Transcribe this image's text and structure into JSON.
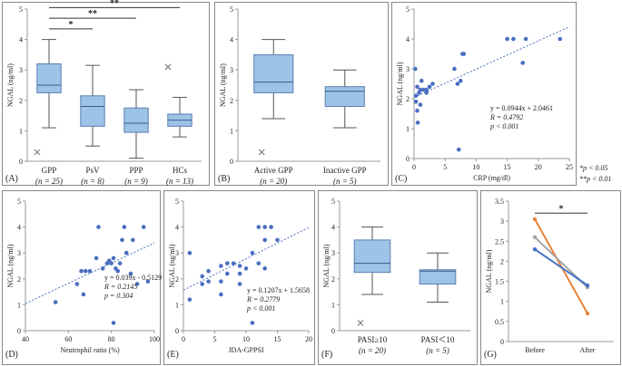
{
  "panels": [
    {
      "id": "A",
      "label": "(A)",
      "type": "box",
      "ylabel": "NGAL (ng/ml)",
      "ylim": [
        0,
        5
      ],
      "yticks": [
        "0",
        "1",
        "2",
        "3",
        "4",
        "5"
      ],
      "categories": [
        {
          "name": "GPP",
          "n": "(n = 25)",
          "min": 1.1,
          "q1": 2.25,
          "median": 2.5,
          "q3": 3.2,
          "max": 4.0,
          "outliers": [
            0.3
          ]
        },
        {
          "name": "PsV",
          "n": "(n = 8)",
          "min": 0.5,
          "q1": 1.15,
          "median": 1.8,
          "q3": 2.15,
          "max": 3.15,
          "outliers": []
        },
        {
          "name": "PPP",
          "n": "(n = 9)",
          "min": 0.1,
          "q1": 0.95,
          "median": 1.25,
          "q3": 1.75,
          "max": 2.35,
          "outliers": []
        },
        {
          "name": "HCs",
          "n": "(n = 13)",
          "min": 0.8,
          "q1": 1.15,
          "median": 1.35,
          "q3": 1.55,
          "max": 2.1,
          "outliers": [
            3.1
          ]
        }
      ],
      "brackets": [
        {
          "from": 0,
          "to": 1,
          "label": "*",
          "y": 4.35
        },
        {
          "from": 0,
          "to": 2,
          "label": "**",
          "y": 4.7
        },
        {
          "from": 0,
          "to": 3,
          "label": "**",
          "y": 5.05
        }
      ]
    },
    {
      "id": "B",
      "label": "(B)",
      "type": "box",
      "ylabel": "NGAL (ng/ml)",
      "ylim": [
        0,
        5
      ],
      "yticks": [
        "0",
        "1",
        "2",
        "3",
        "4",
        "5"
      ],
      "categories": [
        {
          "name": "Active GPP",
          "n": "(n = 20)",
          "min": 1.4,
          "q1": 2.25,
          "median": 2.6,
          "q3": 3.5,
          "max": 4.0,
          "outliers": [
            0.3
          ]
        },
        {
          "name": "Inactive GPP",
          "n": "(n = 5)",
          "min": 1.1,
          "q1": 1.8,
          "median": 2.3,
          "q3": 2.45,
          "max": 3.0,
          "outliers": []
        }
      ]
    },
    {
      "id": "C",
      "label": "(C)",
      "type": "scatter",
      "xlabel": "CRP (mg/dl)",
      "ylabel": "NGAL (ng/ml)",
      "xlim": [
        0,
        25
      ],
      "ylim": [
        0,
        5
      ],
      "xticks": [
        "0",
        "5",
        "10",
        "15",
        "20",
        "25"
      ],
      "yticks": [
        "0",
        "1",
        "2",
        "3",
        "4",
        "5"
      ],
      "trend": {
        "slope": 0.0944,
        "intercept": 2.0461
      },
      "annotations": [
        "y = 0.0944x + 2.0461",
        "R = 0.4792",
        "p < 0.001"
      ],
      "points": [
        [
          0.2,
          3.0
        ],
        [
          0.3,
          2.1
        ],
        [
          0.3,
          1.9
        ],
        [
          0.5,
          2.4
        ],
        [
          0.5,
          1.6
        ],
        [
          0.6,
          1.2
        ],
        [
          0.8,
          2.2
        ],
        [
          1.0,
          2.3
        ],
        [
          1.0,
          1.8
        ],
        [
          1.2,
          2.6
        ],
        [
          1.5,
          2.3
        ],
        [
          2.0,
          2.3
        ],
        [
          2.0,
          2.2
        ],
        [
          2.5,
          2.4
        ],
        [
          3.0,
          2.5
        ],
        [
          6.5,
          3.0
        ],
        [
          7.0,
          2.5
        ],
        [
          7.2,
          0.3
        ],
        [
          7.5,
          2.6
        ],
        [
          7.8,
          3.5
        ],
        [
          8.0,
          3.5
        ],
        [
          15.0,
          4.0
        ],
        [
          16.0,
          4.0
        ],
        [
          17.5,
          3.2
        ],
        [
          18.0,
          4.0
        ],
        [
          23.5,
          4.0
        ]
      ]
    },
    {
      "id": "D",
      "label": "(D)",
      "type": "scatter",
      "xlabel": "Neutrophil ratio (%)",
      "ylabel": "NGAL (ng/ml)",
      "xlim": [
        40,
        100
      ],
      "ylim": [
        0,
        5
      ],
      "xticks": [
        "40",
        "60",
        "80",
        "100"
      ],
      "yticks": [
        "0",
        "1",
        "2",
        "3",
        "4",
        "5"
      ],
      "trend": {
        "slope": 0.039,
        "intercept": -0.5129
      },
      "annotations": [
        "y = 0.039x - 0.5129",
        "R = 0.2145",
        "p = 0.304"
      ],
      "points": [
        [
          54,
          1.1
        ],
        [
          64,
          1.8
        ],
        [
          66,
          2.3
        ],
        [
          67,
          1.4
        ],
        [
          68,
          2.3
        ],
        [
          70,
          2.3
        ],
        [
          73,
          2.8
        ],
        [
          74,
          4.0
        ],
        [
          76,
          2.4
        ],
        [
          78,
          2.6
        ],
        [
          79,
          2.7
        ],
        [
          80,
          2.6
        ],
        [
          81,
          0.3
        ],
        [
          81,
          2.8
        ],
        [
          82,
          2.4
        ],
        [
          83,
          2.3
        ],
        [
          84,
          2.6
        ],
        [
          85,
          3.5
        ],
        [
          86,
          4.0
        ],
        [
          87,
          3.0
        ],
        [
          89,
          2.2
        ],
        [
          90,
          3.5
        ],
        [
          92,
          1.8
        ],
        [
          95,
          4.0
        ],
        [
          97,
          1.9
        ]
      ]
    },
    {
      "id": "E",
      "label": "(E)",
      "type": "scatter",
      "xlabel": "JDA-GPPSI",
      "ylabel": "NGAL (ng/ml)",
      "xlim": [
        0,
        20
      ],
      "ylim": [
        0,
        5
      ],
      "xticks": [
        "0",
        "5",
        "10",
        "15",
        "20"
      ],
      "yticks": [
        "0",
        "1",
        "2",
        "3",
        "4",
        "5"
      ],
      "trend": {
        "slope": 0.1207,
        "intercept": 1.5658
      },
      "annotations": [
        "y = 0.1207x + 1.5658",
        "R = 0.2779",
        "p < 0.001"
      ],
      "points": [
        [
          1,
          3.0
        ],
        [
          1,
          1.2
        ],
        [
          3,
          2.1
        ],
        [
          3,
          1.8
        ],
        [
          4,
          2.3
        ],
        [
          4,
          1.9
        ],
        [
          6,
          2.5
        ],
        [
          6,
          1.9
        ],
        [
          6,
          1.4
        ],
        [
          7,
          2.6
        ],
        [
          7,
          2.2
        ],
        [
          8,
          2.6
        ],
        [
          9,
          2.5
        ],
        [
          9,
          2.2
        ],
        [
          9,
          1.8
        ],
        [
          10,
          2.4
        ],
        [
          11,
          3.0
        ],
        [
          11,
          0.3
        ],
        [
          12,
          2.6
        ],
        [
          12,
          4.0
        ],
        [
          13,
          4.0
        ],
        [
          13,
          3.5
        ],
        [
          13,
          2.4
        ],
        [
          14,
          4.0
        ],
        [
          15,
          3.5
        ]
      ]
    },
    {
      "id": "F",
      "label": "(F)",
      "type": "box",
      "ylabel": "NGAL (ng/ml)",
      "ylim": [
        0,
        5
      ],
      "yticks": [
        "0",
        "1",
        "2",
        "3",
        "4",
        "5"
      ],
      "categories": [
        {
          "name": "PASI≥10",
          "n": "(n = 20)",
          "min": 1.4,
          "q1": 2.25,
          "median": 2.6,
          "q3": 3.5,
          "max": 4.0,
          "outliers": [
            0.3
          ]
        },
        {
          "name": "PASI＜10",
          "n": "(n = 5)",
          "min": 1.1,
          "q1": 1.8,
          "median": 2.3,
          "q3": 2.35,
          "max": 3.0,
          "outliers": []
        }
      ]
    },
    {
      "id": "G",
      "label": "(G)",
      "type": "line",
      "ylabel": "NGAL (ng/ml)",
      "ylim": [
        0,
        3.5
      ],
      "yticks": [
        "0",
        "0.5",
        "1",
        "1.5",
        "2",
        "2.5",
        "3",
        "3.5"
      ],
      "categories": [
        "Before",
        "After"
      ],
      "series": [
        {
          "values": [
            3.05,
            0.7
          ],
          "color": "#E8823A"
        },
        {
          "values": [
            2.6,
            1.35
          ],
          "color": "#A6A6A6"
        },
        {
          "values": [
            2.3,
            1.4
          ],
          "color": "#4472C4"
        }
      ],
      "bracket_label": "*"
    }
  ],
  "significance_legend": [
    "*p < 0.05",
    "**p < 0.01"
  ],
  "colors": {
    "box_fill": "#9DC3E6",
    "box_stroke": "#5B7FB3",
    "point": "#4A6FBF",
    "trend": "#4A6FBF",
    "panel_border": "#888888"
  }
}
